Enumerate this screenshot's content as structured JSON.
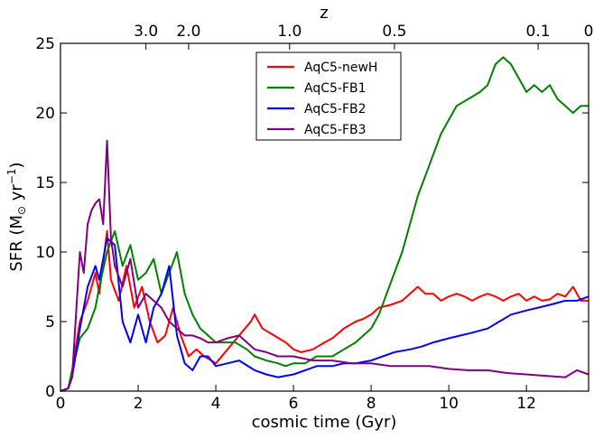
{
  "chart_data": {
    "type": "line",
    "xlabel": "cosmic time (Gyr)",
    "ylabel": "SFR (M",
    "ylabel_sun": "⊙",
    "ylabel_unit": " yr",
    "ylabel_exp": "−1",
    "ylabel_close": ")",
    "top_axis_label": "z",
    "xlim": [
      0,
      13.6
    ],
    "ylim": [
      0,
      25
    ],
    "x_ticks": [
      0,
      2,
      4,
      6,
      8,
      10,
      12
    ],
    "y_ticks": [
      0,
      5,
      10,
      15,
      20,
      25
    ],
    "top_ticks": [
      {
        "label": "3.0",
        "t": 2.2
      },
      {
        "label": "2.0",
        "t": 3.3
      },
      {
        "label": "1.0",
        "t": 5.9
      },
      {
        "label": "0.5",
        "t": 8.6
      },
      {
        "label": "0.1",
        "t": 12.3
      },
      {
        "label": "0",
        "t": 13.6
      }
    ],
    "legend_position": "upper-center",
    "grid": false,
    "series": [
      {
        "name": "AqC5-newH",
        "color": "#ff0000",
        "x": [
          0.0,
          0.2,
          0.3,
          0.5,
          0.7,
          0.9,
          1.0,
          1.2,
          1.3,
          1.5,
          1.7,
          1.9,
          2.1,
          2.3,
          2.5,
          2.7,
          2.9,
          3.1,
          3.3,
          3.5,
          3.7,
          4.0,
          4.3,
          4.6,
          4.9,
          5.0,
          5.2,
          5.5,
          5.8,
          6.0,
          6.2,
          6.5,
          6.8,
          7.0,
          7.3,
          7.6,
          7.8,
          8.0,
          8.2,
          8.5,
          8.8,
          9.0,
          9.2,
          9.4,
          9.6,
          9.8,
          10.0,
          10.2,
          10.4,
          10.6,
          10.8,
          11.0,
          11.2,
          11.4,
          11.6,
          11.8,
          12.0,
          12.2,
          12.4,
          12.6,
          12.8,
          13.0,
          13.2,
          13.4,
          13.6
        ],
        "y": [
          0.0,
          0.2,
          1.5,
          5.0,
          6.5,
          8.5,
          7.0,
          11.5,
          8.0,
          6.5,
          9.0,
          6.0,
          7.5,
          5.0,
          3.5,
          4.0,
          6.0,
          4.0,
          2.5,
          3.0,
          2.5,
          2.0,
          3.0,
          4.0,
          5.0,
          5.5,
          4.5,
          4.0,
          3.5,
          3.0,
          2.8,
          3.0,
          3.5,
          3.8,
          4.5,
          5.0,
          5.2,
          5.5,
          6.0,
          6.2,
          6.5,
          7.0,
          7.5,
          7.0,
          7.0,
          6.5,
          6.8,
          7.0,
          6.8,
          6.5,
          6.8,
          7.0,
          6.8,
          6.5,
          6.8,
          7.0,
          6.5,
          6.8,
          6.5,
          6.6,
          7.0,
          6.8,
          7.5,
          6.5,
          6.5
        ]
      },
      {
        "name": "AqC5-FB1",
        "color": "#008000",
        "x": [
          0.0,
          0.2,
          0.3,
          0.5,
          0.7,
          0.9,
          1.0,
          1.2,
          1.4,
          1.6,
          1.8,
          2.0,
          2.2,
          2.4,
          2.6,
          2.8,
          3.0,
          3.2,
          3.4,
          3.6,
          3.8,
          4.0,
          4.2,
          4.5,
          4.8,
          5.0,
          5.3,
          5.6,
          5.8,
          6.0,
          6.3,
          6.6,
          7.0,
          7.3,
          7.6,
          7.8,
          8.0,
          8.2,
          8.4,
          8.6,
          8.8,
          9.0,
          9.2,
          9.4,
          9.6,
          9.8,
          10.0,
          10.2,
          10.5,
          10.8,
          11.0,
          11.2,
          11.4,
          11.6,
          11.8,
          12.0,
          12.2,
          12.4,
          12.6,
          12.8,
          13.0,
          13.2,
          13.4,
          13.6
        ],
        "y": [
          0.0,
          0.2,
          1.5,
          3.8,
          4.5,
          6.0,
          7.5,
          10.0,
          11.5,
          9.0,
          10.5,
          8.0,
          8.5,
          9.5,
          7.0,
          8.5,
          10.0,
          7.0,
          5.5,
          4.5,
          4.0,
          3.5,
          3.5,
          3.5,
          3.0,
          2.5,
          2.2,
          2.0,
          1.8,
          2.0,
          2.0,
          2.5,
          2.5,
          3.0,
          3.5,
          4.0,
          4.5,
          5.5,
          7.0,
          8.5,
          10.0,
          12.0,
          14.0,
          15.5,
          17.0,
          18.5,
          19.5,
          20.5,
          21.0,
          21.5,
          22.0,
          23.5,
          24.0,
          23.5,
          22.5,
          21.5,
          22.0,
          21.5,
          22.0,
          21.0,
          20.5,
          20.0,
          20.5,
          20.5
        ]
      },
      {
        "name": "AqC5-FB2",
        "color": "#0000ff",
        "x": [
          0.0,
          0.2,
          0.3,
          0.5,
          0.7,
          0.9,
          1.0,
          1.2,
          1.4,
          1.6,
          1.8,
          2.0,
          2.2,
          2.4,
          2.6,
          2.8,
          3.0,
          3.2,
          3.4,
          3.6,
          3.8,
          4.0,
          4.3,
          4.6,
          5.0,
          5.3,
          5.6,
          6.0,
          6.3,
          6.6,
          7.0,
          7.3,
          7.6,
          8.0,
          8.3,
          8.6,
          9.0,
          9.3,
          9.6,
          10.0,
          10.3,
          10.6,
          11.0,
          11.3,
          11.6,
          12.0,
          12.3,
          12.6,
          13.0,
          13.3,
          13.6
        ],
        "y": [
          0.0,
          0.2,
          1.0,
          4.5,
          7.5,
          9.0,
          8.0,
          11.0,
          10.5,
          5.0,
          3.5,
          5.5,
          3.5,
          6.0,
          7.0,
          9.0,
          4.0,
          2.0,
          1.5,
          2.5,
          2.5,
          1.8,
          2.0,
          2.2,
          1.5,
          1.2,
          1.0,
          1.2,
          1.5,
          1.8,
          1.8,
          2.0,
          2.0,
          2.2,
          2.5,
          2.8,
          3.0,
          3.2,
          3.5,
          3.8,
          4.0,
          4.2,
          4.5,
          5.0,
          5.5,
          5.8,
          6.0,
          6.2,
          6.5,
          6.5,
          6.8
        ]
      },
      {
        "name": "AqC5-FB3",
        "color": "#800080",
        "x": [
          0.0,
          0.2,
          0.3,
          0.5,
          0.6,
          0.7,
          0.8,
          0.9,
          1.0,
          1.1,
          1.2,
          1.3,
          1.4,
          1.6,
          1.8,
          2.0,
          2.2,
          2.4,
          2.6,
          2.8,
          3.0,
          3.2,
          3.4,
          3.6,
          3.8,
          4.0,
          4.3,
          4.6,
          5.0,
          5.3,
          5.6,
          6.0,
          6.5,
          7.0,
          7.5,
          8.0,
          8.5,
          9.0,
          9.5,
          10.0,
          10.5,
          11.0,
          11.5,
          12.0,
          12.5,
          13.0,
          13.3,
          13.6
        ],
        "y": [
          0.0,
          0.2,
          1.0,
          10.0,
          8.5,
          12.0,
          13.0,
          13.5,
          13.8,
          12.0,
          18.0,
          11.0,
          9.0,
          7.5,
          9.5,
          6.0,
          7.0,
          6.5,
          6.0,
          5.0,
          4.5,
          4.0,
          4.0,
          3.8,
          3.5,
          3.5,
          3.8,
          4.0,
          3.0,
          2.8,
          2.5,
          2.5,
          2.2,
          2.2,
          2.0,
          2.0,
          1.8,
          1.8,
          1.8,
          1.6,
          1.5,
          1.5,
          1.3,
          1.2,
          1.1,
          1.0,
          1.5,
          1.2
        ]
      }
    ]
  }
}
